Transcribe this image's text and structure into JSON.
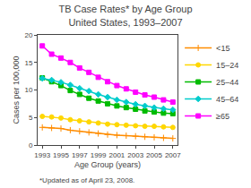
{
  "chart_data": {
    "type": "line",
    "title": "TB Case Rates* by Age Group",
    "subtitle": "United States, 1993–2007",
    "xlabel": "Age Group (years)",
    "ylabel": "Cases per 100,000",
    "x": [
      1993,
      1994,
      1995,
      1996,
      1997,
      1998,
      1999,
      2000,
      2001,
      2002,
      2003,
      2004,
      2005,
      2006,
      2007
    ],
    "series": [
      {
        "name": "<15",
        "color": "#FF8C00",
        "marker": "plus",
        "values": [
          3.2,
          3.1,
          3.0,
          2.7,
          2.5,
          2.3,
          2.1,
          1.9,
          1.8,
          1.7,
          1.6,
          1.5,
          1.4,
          1.3,
          1.2
        ]
      },
      {
        "name": "15–24",
        "color": "#FFD700",
        "marker": "circle",
        "values": [
          5.2,
          5.1,
          4.9,
          4.6,
          4.4,
          4.2,
          4.0,
          3.8,
          3.7,
          3.6,
          3.5,
          3.4,
          3.4,
          3.3,
          3.2
        ]
      },
      {
        "name": "25–44",
        "color": "#00BB00",
        "marker": "square",
        "values": [
          12.2,
          11.5,
          10.8,
          9.9,
          9.2,
          8.5,
          8.0,
          7.5,
          7.1,
          6.8,
          6.5,
          6.2,
          6.0,
          5.8,
          5.7
        ]
      },
      {
        "name": "45–64",
        "color": "#00CCCC",
        "marker": "diamond",
        "values": [
          12.1,
          11.8,
          11.4,
          10.9,
          10.3,
          9.8,
          9.2,
          8.7,
          8.2,
          7.8,
          7.4,
          7.1,
          6.8,
          6.6,
          6.4
        ]
      },
      {
        "name": "≥65",
        "color": "#FF00FF",
        "marker": "square",
        "values": [
          18.0,
          16.5,
          15.8,
          15.0,
          14.0,
          13.2,
          12.3,
          11.5,
          10.8,
          10.2,
          9.6,
          9.1,
          8.7,
          8.2,
          7.8
        ]
      }
    ],
    "xlim": [
      1992.5,
      2007.5
    ],
    "xticks": [
      1993,
      1995,
      1997,
      1999,
      2001,
      2003,
      2005,
      2007
    ],
    "ylim": [
      0,
      20
    ],
    "yticks": [
      0,
      5,
      10,
      15,
      20
    ],
    "grid": false,
    "legend": "right",
    "annotations": [
      "*Updated as of April 23, 2008."
    ]
  }
}
